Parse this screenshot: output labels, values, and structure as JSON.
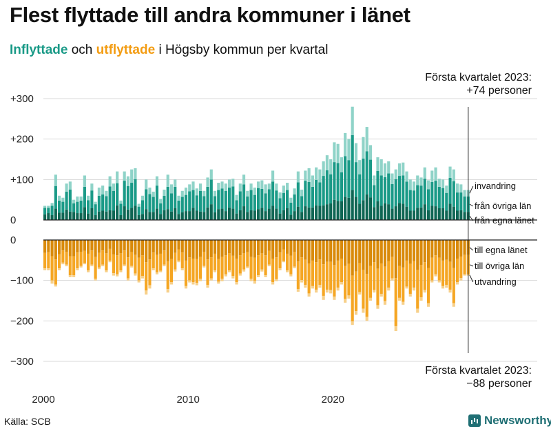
{
  "title": "Flest flyttade till andra kommuner i länet",
  "subtitle": {
    "part_in": "Inflyttade",
    "part_and": "och",
    "part_out": "utflyttade",
    "part_rest": "i Högsby kommun per kvartal"
  },
  "callout_top": {
    "line1": "Första kvartalet 2023:",
    "line2": "+74 personer"
  },
  "callout_bottom": {
    "line1": "Första kvartalet 2023:",
    "line2": "−88 personer"
  },
  "source": "Källa: SCB",
  "brand": "Newsworthy",
  "colors": {
    "in_lan": "#0f6654",
    "in_ovriga": "#1a9a87",
    "in_invandring": "#8fd3c8",
    "out_lan": "#d98a0a",
    "out_ovriga": "#f5a623",
    "out_utvandring": "#f7d08a",
    "grid": "#d9d9d9"
  },
  "chart_data": {
    "type": "bar",
    "stacked": true,
    "x_start": "2000 Q1",
    "x_end": "2023 Q1",
    "x_ticks": [
      "2000",
      "2010",
      "2020"
    ],
    "y_ticks": [
      "+300",
      "+200",
      "+100",
      "0",
      "0",
      "−100",
      "−200",
      "−300"
    ],
    "inflow_series_labels": [
      "från egna länet",
      "från övriga län",
      "invandring"
    ],
    "outflow_series_labels": [
      "till egna länet",
      "till övriga län",
      "utvandring"
    ],
    "ylim_in": [
      0,
      300
    ],
    "ylim_out": [
      -300,
      0
    ],
    "grid": true,
    "inflow_total": [
      35,
      35,
      42,
      112,
      60,
      55,
      90,
      95,
      50,
      58,
      58,
      110,
      60,
      90,
      45,
      80,
      85,
      72,
      108,
      90,
      120,
      48,
      120,
      108,
      125,
      128,
      40,
      60,
      100,
      80,
      70,
      108,
      52,
      75,
      112,
      88,
      100,
      60,
      72,
      80,
      88,
      95,
      78,
      90,
      72,
      105,
      125,
      72,
      92,
      95,
      90,
      100,
      102,
      62,
      90,
      112,
      72,
      90,
      80,
      95,
      98,
      88,
      90,
      122,
      90,
      68,
      85,
      92,
      55,
      78,
      120,
      75,
      122,
      128,
      110,
      130,
      125,
      145,
      160,
      150,
      192,
      188,
      155,
      215,
      200,
      280,
      190,
      148,
      205,
      230,
      185,
      110,
      155,
      150,
      140,
      145,
      115,
      125,
      140,
      142,
      120,
      100,
      95,
      110,
      105,
      130,
      98,
      122,
      130,
      102,
      100,
      85,
      132,
      125,
      90,
      88,
      74,
      74
    ],
    "in_lan": [
      14,
      17,
      12,
      28,
      18,
      18,
      26,
      21,
      20,
      17,
      17,
      32,
      16,
      29,
      12,
      21,
      23,
      21,
      24,
      23,
      36,
      12,
      34,
      26,
      30,
      35,
      12,
      15,
      27,
      20,
      20,
      28,
      15,
      24,
      27,
      21,
      29,
      15,
      19,
      22,
      22,
      30,
      23,
      21,
      20,
      31,
      39,
      19,
      27,
      28,
      22,
      31,
      28,
      16,
      24,
      34,
      20,
      24,
      23,
      27,
      30,
      22,
      28,
      35,
      28,
      16,
      24,
      29,
      13,
      22,
      33,
      20,
      34,
      31,
      31,
      36,
      35,
      36,
      39,
      41,
      50,
      47,
      46,
      57,
      55,
      74,
      57,
      40,
      49,
      63,
      56,
      32,
      46,
      35,
      41,
      39,
      28,
      34,
      42,
      40,
      33,
      23,
      23,
      30,
      31,
      39,
      24,
      35,
      34,
      29,
      29,
      23,
      40,
      33,
      23,
      24,
      20,
      20
    ],
    "in_ovriga": [
      16,
      13,
      23,
      56,
      30,
      27,
      44,
      54,
      21,
      28,
      31,
      50,
      33,
      44,
      27,
      39,
      40,
      38,
      59,
      49,
      55,
      28,
      63,
      58,
      62,
      66,
      21,
      34,
      49,
      44,
      37,
      57,
      26,
      36,
      55,
      45,
      53,
      33,
      38,
      40,
      49,
      44,
      38,
      51,
      39,
      51,
      61,
      40,
      47,
      50,
      50,
      49,
      55,
      33,
      47,
      54,
      38,
      50,
      39,
      52,
      47,
      44,
      48,
      60,
      45,
      38,
      43,
      45,
      30,
      41,
      60,
      39,
      63,
      63,
      51,
      63,
      58,
      73,
      84,
      72,
      93,
      94,
      72,
      101,
      93,
      136,
      86,
      73,
      103,
      107,
      93,
      54,
      75,
      75,
      65,
      76,
      61,
      67,
      67,
      70,
      62,
      51,
      50,
      56,
      54,
      63,
      52,
      59,
      63,
      53,
      50,
      44,
      64,
      63,
      45,
      44,
      38,
      38
    ],
    "outflow_total": [
      -75,
      -75,
      -108,
      -115,
      -75,
      -60,
      -65,
      -92,
      -92,
      -75,
      -68,
      -60,
      -80,
      -65,
      -100,
      -72,
      -65,
      -80,
      -55,
      -88,
      -90,
      -80,
      -65,
      -100,
      -68,
      -88,
      -105,
      -95,
      -135,
      -120,
      -75,
      -85,
      -80,
      -65,
      -130,
      -110,
      -78,
      -55,
      -75,
      -120,
      -105,
      -110,
      -112,
      -102,
      -68,
      -118,
      -100,
      -80,
      -108,
      -102,
      -90,
      -80,
      -95,
      -110,
      -88,
      -78,
      -70,
      -102,
      -108,
      -92,
      -78,
      -92,
      -65,
      -110,
      -102,
      -75,
      -55,
      -80,
      -90,
      -70,
      -128,
      -105,
      -118,
      -140,
      -120,
      -130,
      -118,
      -148,
      -130,
      -132,
      -148,
      -125,
      -110,
      -155,
      -145,
      -210,
      -185,
      -135,
      -180,
      -200,
      -150,
      -130,
      -170,
      -140,
      -160,
      -125,
      -100,
      -225,
      -150,
      -160,
      -120,
      -140,
      -125,
      -180,
      -150,
      -130,
      -165,
      -105,
      -90,
      -105,
      -120,
      -118,
      -130,
      -165,
      -110,
      -100,
      -88,
      -88
    ],
    "out_lan": [
      -32,
      -30,
      -40,
      -48,
      -35,
      -26,
      -29,
      -40,
      -40,
      -31,
      -29,
      -27,
      -34,
      -26,
      -42,
      -32,
      -26,
      -33,
      -22,
      -36,
      -38,
      -33,
      -26,
      -43,
      -30,
      -37,
      -44,
      -38,
      -55,
      -48,
      -31,
      -37,
      -34,
      -26,
      -52,
      -47,
      -32,
      -23,
      -31,
      -51,
      -43,
      -46,
      -47,
      -42,
      -29,
      -48,
      -43,
      -34,
      -47,
      -42,
      -38,
      -33,
      -39,
      -46,
      -38,
      -33,
      -30,
      -42,
      -44,
      -38,
      -33,
      -38,
      -27,
      -46,
      -43,
      -31,
      -23,
      -34,
      -39,
      -29,
      -53,
      -43,
      -49,
      -58,
      -51,
      -55,
      -48,
      -60,
      -54,
      -54,
      -62,
      -51,
      -46,
      -64,
      -59,
      -88,
      -78,
      -57,
      -74,
      -84,
      -64,
      -55,
      -71,
      -58,
      -66,
      -52,
      -42,
      -94,
      -64,
      -68,
      -51,
      -59,
      -52,
      -74,
      -62,
      -55,
      -69,
      -44,
      -38,
      -44,
      -51,
      -49,
      -54,
      -69,
      -46,
      -41,
      -37,
      -37
    ],
    "out_ovriga": [
      -38,
      -40,
      -60,
      -62,
      -35,
      -30,
      -32,
      -47,
      -47,
      -39,
      -35,
      -30,
      -41,
      -35,
      -54,
      -36,
      -35,
      -42,
      -29,
      -46,
      -47,
      -42,
      -35,
      -52,
      -34,
      -46,
      -56,
      -51,
      -70,
      -64,
      -39,
      -43,
      -42,
      -35,
      -69,
      -57,
      -41,
      -28,
      -39,
      -63,
      -57,
      -58,
      -59,
      -54,
      -35,
      -63,
      -52,
      -41,
      -56,
      -54,
      -47,
      -42,
      -50,
      -58,
      -45,
      -40,
      -36,
      -54,
      -57,
      -49,
      -40,
      -49,
      -34,
      -58,
      -54,
      -39,
      -29,
      -41,
      -46,
      -37,
      -68,
      -56,
      -62,
      -74,
      -63,
      -68,
      -63,
      -78,
      -69,
      -70,
      -78,
      -67,
      -58,
      -82,
      -78,
      -113,
      -98,
      -72,
      -96,
      -106,
      -79,
      -69,
      -90,
      -75,
      -85,
      -66,
      -53,
      -119,
      -79,
      -85,
      -64,
      -74,
      -66,
      -96,
      -80,
      -69,
      -87,
      -56,
      -47,
      -56,
      -63,
      -62,
      -69,
      -87,
      -58,
      -53,
      -48,
      -48
    ]
  }
}
